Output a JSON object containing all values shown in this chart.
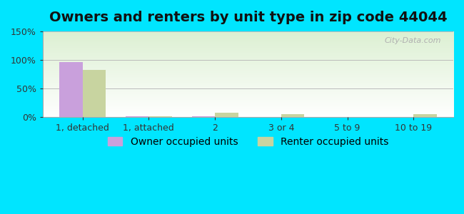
{
  "title": "Owners and renters by unit type in zip code 44044",
  "categories": [
    "1, detached",
    "1, attached",
    "2",
    "3 or 4",
    "5 to 9",
    "10 to 19"
  ],
  "owner_values": [
    96,
    1,
    1,
    0,
    0,
    0
  ],
  "renter_values": [
    82,
    1.5,
    7,
    5,
    0.5,
    5
  ],
  "owner_color": "#c9a0dc",
  "renter_color": "#c8d4a0",
  "outer_bg": "#00e5ff",
  "ylim": [
    0,
    150
  ],
  "yticks": [
    0,
    50,
    100,
    150
  ],
  "ytick_labels": [
    "0%",
    "50%",
    "100%",
    "150%"
  ],
  "watermark": "City-Data.com",
  "legend_labels": [
    "Owner occupied units",
    "Renter occupied units"
  ],
  "bar_width": 0.35,
  "title_fontsize": 14,
  "tick_fontsize": 9,
  "legend_fontsize": 10
}
